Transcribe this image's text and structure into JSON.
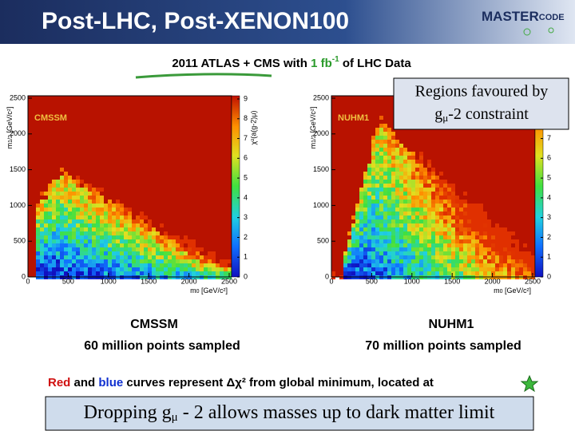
{
  "header": {
    "title": "Post-LHC, Post-XENON100",
    "logo": {
      "left": "MASTER",
      "right": "CODE"
    }
  },
  "subtitle": {
    "before": "2011 ATLAS + CMS with ",
    "lumi": "1 fb",
    "sup": "-1",
    "after": " of LHC Data"
  },
  "plots": [
    {
      "label": "CMSSM",
      "y_label": {
        "m": "m",
        "sub": "1/2",
        "unit": " [GeV/c²]"
      },
      "x_label": {
        "m": "m",
        "sub": "0",
        "unit": " [GeV/c²]"
      },
      "xticks": [
        0,
        500,
        1000,
        1500,
        2000,
        2500
      ],
      "yticks": [
        0,
        500,
        1000,
        1500,
        2000,
        2500
      ],
      "clim": [
        0,
        9
      ],
      "cticks": [
        0,
        1,
        2,
        3,
        4,
        5,
        6,
        7,
        8,
        9
      ],
      "colorbar_label": "χ²(a(g-2)μ)",
      "caption_title": "CMSSM",
      "caption": "60 million points sampled"
    },
    {
      "label": "NUHM1",
      "y_label": {
        "m": "m",
        "sub": "1/2",
        "unit": " [GeV/c²]"
      },
      "x_label": {
        "m": "m",
        "sub": "0",
        "unit": " [GeV/c²]"
      },
      "xticks": [
        0,
        500,
        1000,
        1500,
        2000,
        2500
      ],
      "yticks": [
        0,
        500,
        1000,
        1500,
        2000,
        2500
      ],
      "clim": [
        0,
        9
      ],
      "cticks": [
        0,
        1,
        2,
        3,
        4,
        5,
        6,
        7
      ],
      "caption_title": "NUHM1",
      "caption": "70 million points sampled"
    }
  ],
  "callout_top": {
    "line1": "Regions favoured by",
    "g": "g",
    "sub": "μ",
    "rest": "-2 constraint"
  },
  "footer_line": {
    "red": "Red",
    "and": " and ",
    "blue": "blue",
    "rest": " curves represent ",
    "delta": "Δχ²",
    "rest2": " from global minimum, located at"
  },
  "callout_bottom": {
    "before": "Dropping g",
    "sub": "μ",
    "rest": " - 2 allows masses up to dark matter limit"
  }
}
